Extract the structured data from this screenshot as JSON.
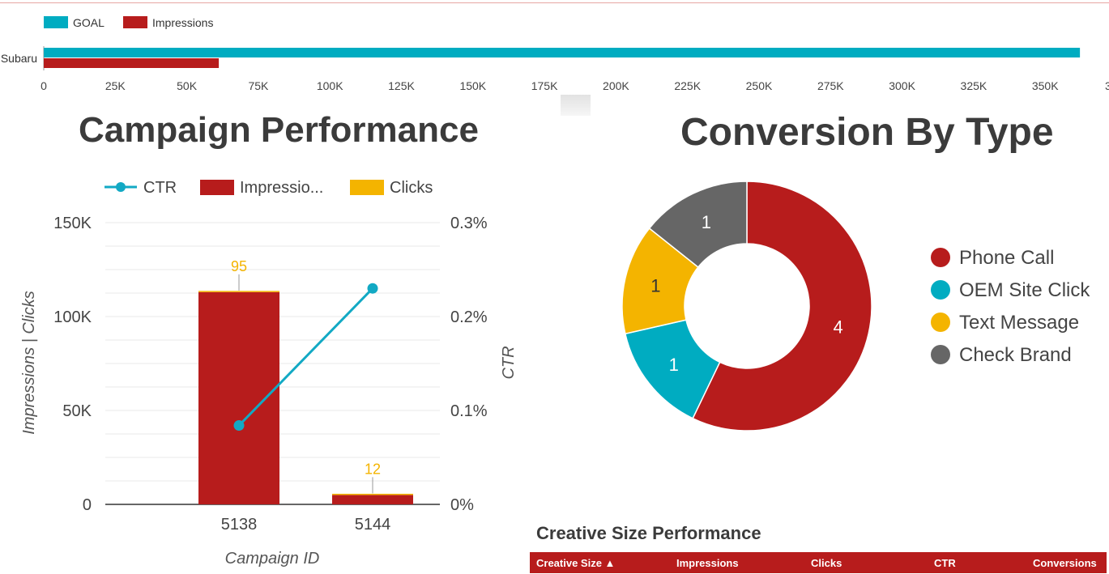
{
  "chart_data": [
    {
      "type": "bar",
      "orientation": "horizontal",
      "categories": [
        "Subaru"
      ],
      "series": [
        {
          "name": "GOAL",
          "values": [
            367000
          ],
          "color": "#00acc1"
        },
        {
          "name": "Impressions",
          "values": [
            62000
          ],
          "color": "#b71c1c"
        }
      ],
      "x_ticks": [
        "0",
        "25K",
        "50K",
        "75K",
        "100K",
        "125K",
        "150K",
        "175K",
        "200K",
        "225K",
        "250K",
        "275K",
        "300K",
        "325K",
        "350K",
        "3"
      ],
      "xlim": [
        0,
        375000
      ],
      "legend": "top-left",
      "grid": false
    },
    {
      "type": "bar",
      "title": "Campaign Performance",
      "categories": [
        "5138",
        "5144"
      ],
      "xlabel": "Campaign ID",
      "ylabel": "Impressions | Clicks",
      "y2label": "CTR",
      "ylim": [
        0,
        150000
      ],
      "y2lim": [
        0,
        0.3
      ],
      "y_ticks": [
        "0",
        "50K",
        "100K",
        "150K"
      ],
      "y2_ticks": [
        "0%",
        "0.1%",
        "0.2%",
        "0.3%"
      ],
      "legend_labels": [
        "CTR",
        "Impressio...",
        "Clicks"
      ],
      "series": [
        {
          "name": "Impressions",
          "type": "bar",
          "values": [
            113000,
            5000
          ],
          "color": "#b71c1c"
        },
        {
          "name": "Clicks",
          "type": "bar",
          "values": [
            95,
            12
          ],
          "labels": [
            "95",
            "12"
          ],
          "color": "#f4b400"
        },
        {
          "name": "CTR",
          "type": "line",
          "axis": "right",
          "values": [
            0.084,
            0.23
          ],
          "color": "#12a9c4"
        }
      ],
      "legend": "top",
      "grid": true
    },
    {
      "type": "pie",
      "subtype": "donut",
      "title": "Conversion By Type",
      "categories": [
        "Phone Call",
        "OEM Site Click",
        "Text Message",
        "Check Brand"
      ],
      "values": [
        4,
        1,
        1,
        1
      ],
      "labels": [
        "4",
        "1",
        "1",
        "1"
      ],
      "colors": [
        "#b71c1c",
        "#00acc1",
        "#f4b400",
        "#666666"
      ],
      "legend": "right"
    },
    {
      "type": "table",
      "title": "Creative Size Performance",
      "columns": [
        "Creative Size ▲",
        "Impressions",
        "Clicks",
        "CTR",
        "Conversions"
      ],
      "rows": []
    }
  ]
}
